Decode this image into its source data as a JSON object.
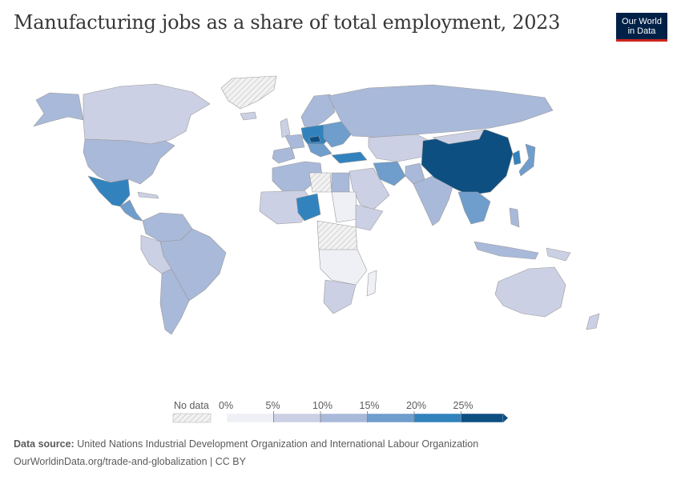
{
  "title": "Manufacturing jobs as a share of total employment, 2023",
  "logo": {
    "line1": "Our World",
    "line2": "in Data"
  },
  "legend": {
    "no_data_label": "No data",
    "bins": [
      "0%",
      "5%",
      "10%",
      "15%",
      "20%",
      "25%"
    ],
    "colors": [
      "#eef0f6",
      "#ccd0e4",
      "#a9b9d9",
      "#6f9dcc",
      "#3283bd",
      "#0e4f82"
    ]
  },
  "colors": {
    "no_data": "#e8e8e8",
    "borders": "#9a9a9a",
    "brand": "#002147",
    "brand_accent": "#ce261e"
  },
  "footer": {
    "source_label": "Data source:",
    "source_text": "United Nations Industrial Development Organization and International Labour Organization",
    "url_text": "OurWorldinData.org/trade-and-globalization | CC BY"
  }
}
